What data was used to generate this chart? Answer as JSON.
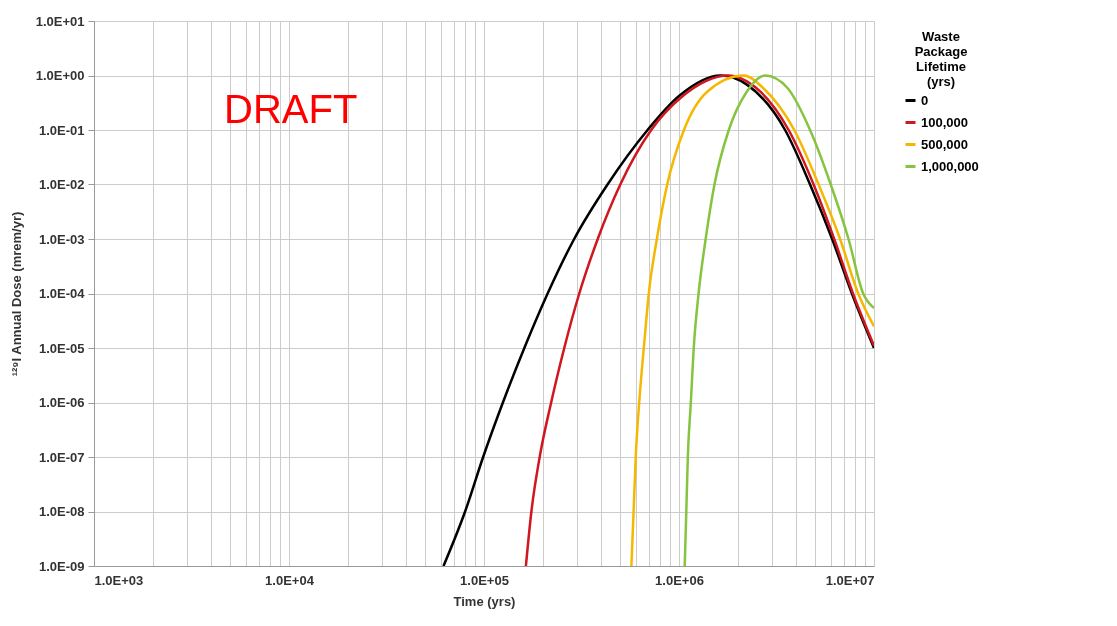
{
  "chart_data": {
    "type": "line",
    "xlabel": "Time (yrs)",
    "ylabel": "¹²⁹I Annual Dose (mrem/yr)",
    "legend_title": "Waste Package Lifetime (yrs)",
    "annotations": [
      "DRAFT"
    ],
    "log": "xy",
    "grid": true,
    "legend": "right",
    "marker": "none",
    "line_style": "solid",
    "xlim": [
      1000,
      10000000
    ],
    "ylim": [
      1e-09,
      10
    ],
    "xticks": [
      {
        "value": 1000,
        "label": "1.0E+03"
      },
      {
        "value": 2000,
        "label": null
      },
      {
        "value": 3000,
        "label": null
      },
      {
        "value": 4000,
        "label": null
      },
      {
        "value": 5000,
        "label": null
      },
      {
        "value": 6000,
        "label": null
      },
      {
        "value": 7000,
        "label": null
      },
      {
        "value": 8000,
        "label": null
      },
      {
        "value": 9000,
        "label": null
      },
      {
        "value": 10000,
        "label": "1.0E+04"
      },
      {
        "value": 20000,
        "label": null
      },
      {
        "value": 30000,
        "label": null
      },
      {
        "value": 40000,
        "label": null
      },
      {
        "value": 50000,
        "label": null
      },
      {
        "value": 60000,
        "label": null
      },
      {
        "value": 70000,
        "label": null
      },
      {
        "value": 80000,
        "label": null
      },
      {
        "value": 90000,
        "label": null
      },
      {
        "value": 100000,
        "label": "1.0E+05"
      },
      {
        "value": 200000,
        "label": null
      },
      {
        "value": 300000,
        "label": null
      },
      {
        "value": 400000,
        "label": null
      },
      {
        "value": 500000,
        "label": null
      },
      {
        "value": 600000,
        "label": null
      },
      {
        "value": 700000,
        "label": null
      },
      {
        "value": 800000,
        "label": null
      },
      {
        "value": 900000,
        "label": null
      },
      {
        "value": 1000000,
        "label": "1.0E+06"
      },
      {
        "value": 2000000,
        "label": null
      },
      {
        "value": 3000000,
        "label": null
      },
      {
        "value": 4000000,
        "label": null
      },
      {
        "value": 5000000,
        "label": null
      },
      {
        "value": 6000000,
        "label": null
      },
      {
        "value": 7000000,
        "label": null
      },
      {
        "value": 8000000,
        "label": null
      },
      {
        "value": 9000000,
        "label": null
      },
      {
        "value": 10000000,
        "label": "1.0E+07"
      }
    ],
    "yticks": [
      {
        "value": 1e-09,
        "label": "1.0E-09"
      },
      {
        "value": 1e-08,
        "label": "1.0E-08"
      },
      {
        "value": 1e-07,
        "label": "1.0E-07"
      },
      {
        "value": 1e-06,
        "label": "1.0E-06"
      },
      {
        "value": 1e-05,
        "label": "1.0E-05"
      },
      {
        "value": 0.0001,
        "label": "1.0E-04"
      },
      {
        "value": 0.001,
        "label": "1.0E-03"
      },
      {
        "value": 0.01,
        "label": "1.0E-02"
      },
      {
        "value": 0.1,
        "label": "1.0E-01"
      },
      {
        "value": 1,
        "label": "1.0E+00"
      },
      {
        "value": 10,
        "label": "1.0E+01"
      }
    ],
    "series": [
      {
        "name": "0",
        "color": "#000000",
        "x": [
          62000,
          80000,
          99000,
          125000,
          161000,
          212000,
          290000,
          430000,
          690000,
          1000000,
          1630000,
          2230000,
          3500000,
          4700000,
          6100000,
          7700000,
          10000000
        ],
        "values": [
          1e-09,
          1e-08,
          1e-07,
          1e-06,
          1e-05,
          0.0001,
          0.001,
          0.01,
          0.1,
          0.42,
          1.0,
          0.68,
          0.1,
          0.01,
          0.001,
          0.0001,
          1e-05
        ]
      },
      {
        "name": "100,000",
        "color": "#d0161e",
        "x": [
          164000,
          175000,
          193000,
          221000,
          258000,
          308000,
          383000,
          500000,
          720000,
          1020000,
          1800000,
          2230000,
          3650000,
          4900000,
          6250000,
          7800000,
          10000000
        ],
        "values": [
          1e-09,
          1e-08,
          1e-07,
          1e-06,
          1e-05,
          0.0001,
          0.001,
          0.01,
          0.1,
          0.39,
          1.0,
          0.78,
          0.1,
          0.01,
          0.001,
          0.0001,
          1.1e-05
        ]
      },
      {
        "name": "500,000",
        "color": "#f5b800",
        "x": [
          570000,
          585000,
          600000,
          625000,
          660000,
          700000,
          770000,
          870000,
          1060000,
          1400000,
          2150000,
          2700000,
          3900000,
          5200000,
          6700000,
          8300000,
          10000000
        ],
        "values": [
          1e-09,
          1e-08,
          1e-07,
          1e-06,
          1e-05,
          0.0001,
          0.001,
          0.01,
          0.1,
          0.51,
          1.0,
          0.59,
          0.1,
          0.01,
          0.001,
          0.0001,
          2.5e-05
        ]
      },
      {
        "name": "1,000,000",
        "color": "#86c440",
        "x": [
          1070000,
          1090000,
          1110000,
          1150000,
          1190000,
          1260000,
          1370000,
          1520000,
          1800000,
          2230000,
          2770000,
          3600000,
          4700000,
          6000000,
          7400000,
          8800000,
          10000000
        ],
        "values": [
          1e-09,
          1e-08,
          1e-07,
          1e-06,
          1e-05,
          0.0001,
          0.001,
          0.01,
          0.1,
          0.51,
          1.0,
          0.59,
          0.1,
          0.01,
          0.001,
          0.0001,
          5.4e-05
        ]
      }
    ]
  }
}
